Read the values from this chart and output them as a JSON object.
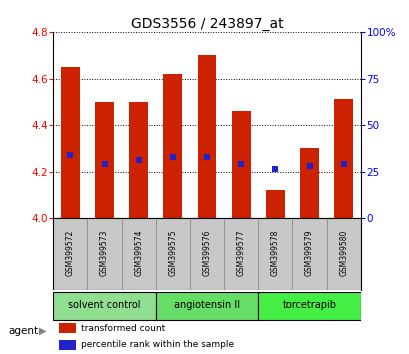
{
  "title": "GDS3556 / 243897_at",
  "samples": [
    "GSM399572",
    "GSM399573",
    "GSM399574",
    "GSM399575",
    "GSM399576",
    "GSM399577",
    "GSM399578",
    "GSM399579",
    "GSM399580"
  ],
  "bar_values": [
    4.65,
    4.5,
    4.5,
    4.62,
    4.7,
    4.46,
    4.12,
    4.3,
    4.51
  ],
  "bar_bottom": 4.0,
  "percentile_values": [
    4.27,
    4.235,
    4.25,
    4.265,
    4.265,
    4.235,
    4.21,
    4.225,
    4.235
  ],
  "ylim_left": [
    4.0,
    4.8
  ],
  "ylim_right": [
    0,
    100
  ],
  "yticks_left": [
    4.0,
    4.2,
    4.4,
    4.6,
    4.8
  ],
  "yticks_right": [
    0,
    25,
    50,
    75,
    100
  ],
  "ytick_labels_right": [
    "0",
    "25",
    "50",
    "75",
    "100%"
  ],
  "bar_color": "#cc2200",
  "percentile_color": "#2222cc",
  "bar_width": 0.55,
  "groups": [
    {
      "label": "solvent control",
      "samples": [
        0,
        1,
        2
      ],
      "color": "#90de90"
    },
    {
      "label": "angiotensin II",
      "samples": [
        3,
        4,
        5
      ],
      "color": "#66dd66"
    },
    {
      "label": "torcetrapib",
      "samples": [
        6,
        7,
        8
      ],
      "color": "#44ee44"
    }
  ],
  "agent_label": "agent",
  "legend_items": [
    {
      "color": "#cc2200",
      "label": "transformed count"
    },
    {
      "color": "#2222cc",
      "label": "percentile rank within the sample"
    }
  ],
  "grid_color": "black",
  "background_color": "#ffffff",
  "sample_bg_color": "#c8c8c8"
}
